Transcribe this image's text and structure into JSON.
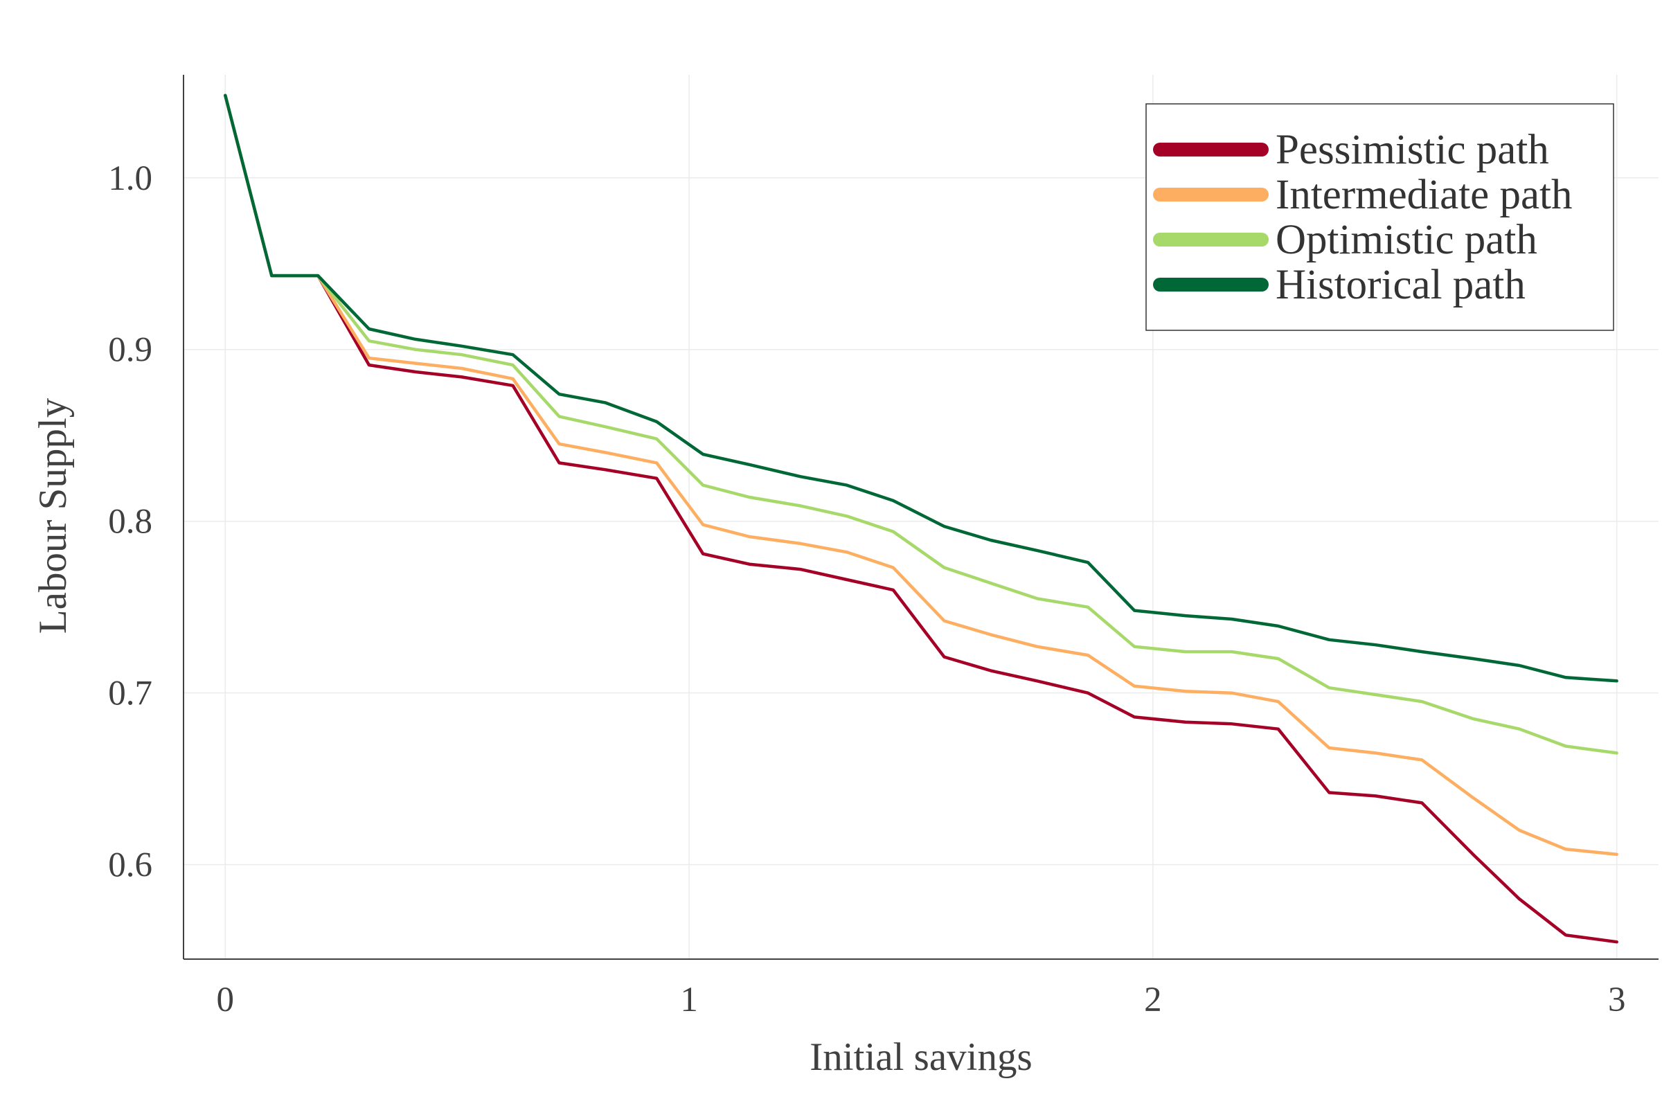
{
  "chart_data": {
    "type": "line",
    "xlabel": "Initial savings",
    "ylabel": "Labour Supply",
    "xlim": [
      -0.09,
      3.09
    ],
    "ylim": [
      0.545,
      1.06
    ],
    "xticks": [
      0,
      1,
      2,
      3
    ],
    "xtick_labels": [
      "0",
      "1",
      "2",
      "3"
    ],
    "yticks": [
      0.6,
      0.7,
      0.8,
      0.9,
      1.0
    ],
    "ytick_labels": [
      "0.6",
      "0.7",
      "0.8",
      "0.9",
      "1.0"
    ],
    "grid": true,
    "legend_position": "top-right",
    "x": [
      0,
      0.1,
      0.2,
      0.31,
      0.41,
      0.51,
      0.62,
      0.72,
      0.82,
      0.93,
      1.03,
      1.13,
      1.24,
      1.34,
      1.44,
      1.55,
      1.65,
      1.75,
      1.86,
      1.96,
      2.07,
      2.17,
      2.27,
      2.38,
      2.48,
      2.58,
      2.69,
      2.79,
      2.89,
      3.0
    ],
    "series": [
      {
        "name": "Pessimistic path",
        "color": "#a50026",
        "values": [
          1.048,
          0.943,
          0.943,
          0.891,
          0.887,
          0.884,
          0.879,
          0.834,
          0.83,
          0.825,
          0.781,
          0.775,
          0.772,
          0.766,
          0.76,
          0.721,
          0.713,
          0.707,
          0.7,
          0.686,
          0.683,
          0.682,
          0.679,
          0.642,
          0.64,
          0.636,
          0.606,
          0.58,
          0.559,
          0.555
        ]
      },
      {
        "name": "Intermediate path",
        "color": "#fdae61",
        "values": [
          1.048,
          0.943,
          0.943,
          0.895,
          0.892,
          0.889,
          0.883,
          0.845,
          0.84,
          0.834,
          0.798,
          0.791,
          0.787,
          0.782,
          0.773,
          0.742,
          0.734,
          0.727,
          0.722,
          0.704,
          0.701,
          0.7,
          0.695,
          0.668,
          0.665,
          0.661,
          0.639,
          0.62,
          0.609,
          0.606
        ]
      },
      {
        "name": "Optimistic path",
        "color": "#a6d96a",
        "values": [
          1.048,
          0.943,
          0.943,
          0.905,
          0.9,
          0.897,
          0.891,
          0.861,
          0.855,
          0.848,
          0.821,
          0.814,
          0.809,
          0.803,
          0.794,
          0.773,
          0.764,
          0.755,
          0.75,
          0.727,
          0.724,
          0.724,
          0.72,
          0.703,
          0.699,
          0.695,
          0.685,
          0.679,
          0.669,
          0.665
        ]
      },
      {
        "name": "Historical path",
        "color": "#006837",
        "values": [
          1.048,
          0.943,
          0.943,
          0.912,
          0.906,
          0.902,
          0.897,
          0.874,
          0.869,
          0.858,
          0.839,
          0.833,
          0.826,
          0.821,
          0.812,
          0.797,
          0.789,
          0.783,
          0.776,
          0.748,
          0.745,
          0.743,
          0.739,
          0.731,
          0.728,
          0.724,
          0.72,
          0.716,
          0.709,
          0.707
        ]
      }
    ]
  }
}
